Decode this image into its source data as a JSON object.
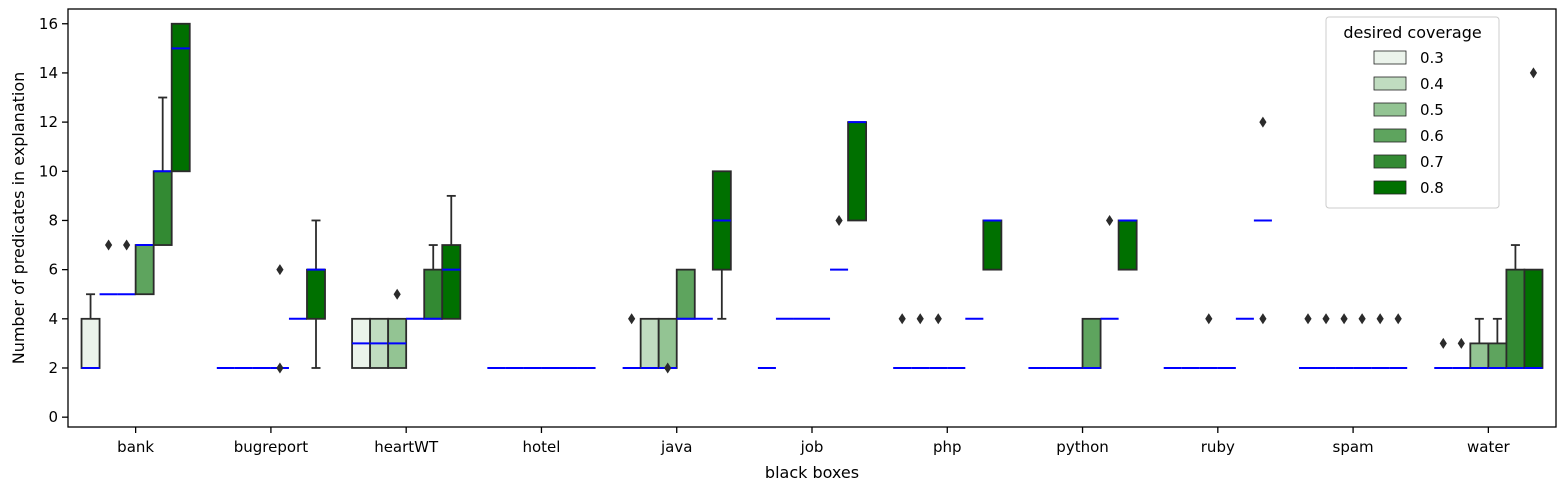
{
  "chart_data": {
    "type": "box",
    "xlabel": "black boxes",
    "ylabel": "Number of predicates in explanation",
    "ylim": [
      -0.4,
      16.6
    ],
    "yticks": [
      0,
      2,
      4,
      6,
      8,
      10,
      12,
      14,
      16
    ],
    "categories": [
      "bank",
      "bugreport",
      "heartWT",
      "hotel",
      "java",
      "job",
      "php",
      "python",
      "ruby",
      "spam",
      "water"
    ],
    "legend": {
      "title": "desired coverage",
      "position": "top-right",
      "entries": [
        {
          "label": "0.3",
          "color": "#ebf3eb"
        },
        {
          "label": "0.4",
          "color": "#c0dcc0"
        },
        {
          "label": "0.5",
          "color": "#93c493"
        },
        {
          "label": "0.6",
          "color": "#5ea45e"
        },
        {
          "label": "0.7",
          "color": "#338a33"
        },
        {
          "label": "0.8",
          "color": "#007000"
        }
      ]
    },
    "median_color": "#0000ff",
    "series": [
      {
        "name": "0.3",
        "boxes": [
          {
            "q1": 2,
            "median": 2,
            "q3": 4,
            "wlo": 2,
            "whi": 5,
            "fliers": []
          },
          {
            "q1": 2,
            "median": 2,
            "q3": 2,
            "wlo": 2,
            "whi": 2,
            "fliers": []
          },
          {
            "q1": 2,
            "median": 3,
            "q3": 4,
            "wlo": 2,
            "whi": 4,
            "fliers": []
          },
          {
            "q1": 2,
            "median": 2,
            "q3": 2,
            "wlo": 2,
            "whi": 2,
            "fliers": []
          },
          {
            "q1": 2,
            "median": 2,
            "q3": 2,
            "wlo": 2,
            "whi": 2,
            "fliers": [
              4
            ]
          },
          {
            "q1": 2,
            "median": 2,
            "q3": 2,
            "wlo": 2,
            "whi": 2,
            "fliers": []
          },
          {
            "q1": 2,
            "median": 2,
            "q3": 2,
            "wlo": 2,
            "whi": 2,
            "fliers": [
              4
            ]
          },
          {
            "q1": 2,
            "median": 2,
            "q3": 2,
            "wlo": 2,
            "whi": 2,
            "fliers": []
          },
          {
            "q1": 2,
            "median": 2,
            "q3": 2,
            "wlo": 2,
            "whi": 2,
            "fliers": []
          },
          {
            "q1": 2,
            "median": 2,
            "q3": 2,
            "wlo": 2,
            "whi": 2,
            "fliers": [
              4
            ]
          },
          {
            "q1": 2,
            "median": 2,
            "q3": 2,
            "wlo": 2,
            "whi": 2,
            "fliers": [
              3
            ]
          }
        ]
      },
      {
        "name": "0.4",
        "boxes": [
          {
            "q1": 5,
            "median": 5,
            "q3": 5,
            "wlo": 5,
            "whi": 5,
            "fliers": [
              7
            ]
          },
          {
            "q1": 2,
            "median": 2,
            "q3": 2,
            "wlo": 2,
            "whi": 2,
            "fliers": []
          },
          {
            "q1": 2,
            "median": 3,
            "q3": 4,
            "wlo": 2,
            "whi": 4,
            "fliers": []
          },
          {
            "q1": 2,
            "median": 2,
            "q3": 2,
            "wlo": 2,
            "whi": 2,
            "fliers": []
          },
          {
            "q1": 2,
            "median": 2,
            "q3": 4,
            "wlo": 2,
            "whi": 4,
            "fliers": []
          },
          {
            "q1": 4,
            "median": 4,
            "q3": 4,
            "wlo": 4,
            "whi": 4,
            "fliers": []
          },
          {
            "q1": 2,
            "median": 2,
            "q3": 2,
            "wlo": 2,
            "whi": 2,
            "fliers": [
              4
            ]
          },
          {
            "q1": 2,
            "median": 2,
            "q3": 2,
            "wlo": 2,
            "whi": 2,
            "fliers": []
          },
          {
            "q1": 2,
            "median": 2,
            "q3": 2,
            "wlo": 2,
            "whi": 2,
            "fliers": []
          },
          {
            "q1": 2,
            "median": 2,
            "q3": 2,
            "wlo": 2,
            "whi": 2,
            "fliers": [
              4
            ]
          },
          {
            "q1": 2,
            "median": 2,
            "q3": 2,
            "wlo": 2,
            "whi": 2,
            "fliers": [
              3
            ]
          }
        ]
      },
      {
        "name": "0.5",
        "boxes": [
          {
            "q1": 5,
            "median": 5,
            "q3": 5,
            "wlo": 5,
            "whi": 5,
            "fliers": [
              7
            ]
          },
          {
            "q1": 2,
            "median": 2,
            "q3": 2,
            "wlo": 2,
            "whi": 2,
            "fliers": []
          },
          {
            "q1": 2,
            "median": 3,
            "q3": 4,
            "wlo": 2,
            "whi": 4,
            "fliers": [
              5
            ]
          },
          {
            "q1": 2,
            "median": 2,
            "q3": 2,
            "wlo": 2,
            "whi": 2,
            "fliers": []
          },
          {
            "q1": 2,
            "median": 2,
            "q3": 4,
            "wlo": 2,
            "whi": 4,
            "fliers": [
              2
            ]
          },
          {
            "q1": 4,
            "median": 4,
            "q3": 4,
            "wlo": 4,
            "whi": 4,
            "fliers": []
          },
          {
            "q1": 2,
            "median": 2,
            "q3": 2,
            "wlo": 2,
            "whi": 2,
            "fliers": [
              4
            ]
          },
          {
            "q1": 2,
            "median": 2,
            "q3": 2,
            "wlo": 2,
            "whi": 2,
            "fliers": []
          },
          {
            "q1": 2,
            "median": 2,
            "q3": 2,
            "wlo": 2,
            "whi": 2,
            "fliers": [
              4
            ]
          },
          {
            "q1": 2,
            "median": 2,
            "q3": 2,
            "wlo": 2,
            "whi": 2,
            "fliers": [
              4
            ]
          },
          {
            "q1": 2,
            "median": 2,
            "q3": 3,
            "wlo": 2,
            "whi": 4,
            "fliers": []
          }
        ]
      },
      {
        "name": "0.6",
        "boxes": [
          {
            "q1": 5,
            "median": 7,
            "q3": 7,
            "wlo": 5,
            "whi": 7,
            "fliers": []
          },
          {
            "q1": 2,
            "median": 2,
            "q3": 2,
            "wlo": 2,
            "whi": 2,
            "fliers": [
              2,
              6
            ]
          },
          {
            "q1": 4,
            "median": 4,
            "q3": 4,
            "wlo": 4,
            "whi": 4,
            "fliers": []
          },
          {
            "q1": 2,
            "median": 2,
            "q3": 2,
            "wlo": 2,
            "whi": 2,
            "fliers": []
          },
          {
            "q1": 4,
            "median": 4,
            "q3": 6,
            "wlo": 4,
            "whi": 6,
            "fliers": []
          },
          {
            "q1": 4,
            "median": 4,
            "q3": 4,
            "wlo": 4,
            "whi": 4,
            "fliers": []
          },
          {
            "q1": 2,
            "median": 2,
            "q3": 2,
            "wlo": 2,
            "whi": 2,
            "fliers": []
          },
          {
            "q1": 2,
            "median": 2,
            "q3": 4,
            "wlo": 2,
            "whi": 4,
            "fliers": []
          },
          {
            "q1": 2,
            "median": 2,
            "q3": 2,
            "wlo": 2,
            "whi": 2,
            "fliers": []
          },
          {
            "q1": 2,
            "median": 2,
            "q3": 2,
            "wlo": 2,
            "whi": 2,
            "fliers": [
              4
            ]
          },
          {
            "q1": 2,
            "median": 2,
            "q3": 3,
            "wlo": 2,
            "whi": 4,
            "fliers": []
          }
        ]
      },
      {
        "name": "0.7",
        "boxes": [
          {
            "q1": 7,
            "median": 10,
            "q3": 10,
            "wlo": 7,
            "whi": 13,
            "fliers": []
          },
          {
            "q1": 4,
            "median": 4,
            "q3": 4,
            "wlo": 4,
            "whi": 4,
            "fliers": []
          },
          {
            "q1": 4,
            "median": 4,
            "q3": 6,
            "wlo": 4,
            "whi": 7,
            "fliers": []
          },
          {
            "q1": 2,
            "median": 2,
            "q3": 2,
            "wlo": 2,
            "whi": 2,
            "fliers": []
          },
          {
            "q1": 4,
            "median": 4,
            "q3": 4,
            "wlo": 4,
            "whi": 4,
            "fliers": []
          },
          {
            "q1": 6,
            "median": 6,
            "q3": 6,
            "wlo": 6,
            "whi": 6,
            "fliers": [
              8
            ]
          },
          {
            "q1": 4,
            "median": 4,
            "q3": 4,
            "wlo": 4,
            "whi": 4,
            "fliers": []
          },
          {
            "q1": 4,
            "median": 4,
            "q3": 4,
            "wlo": 4,
            "whi": 4,
            "fliers": [
              8
            ]
          },
          {
            "q1": 4,
            "median": 4,
            "q3": 4,
            "wlo": 4,
            "whi": 4,
            "fliers": []
          },
          {
            "q1": 2,
            "median": 2,
            "q3": 2,
            "wlo": 2,
            "whi": 2,
            "fliers": [
              4
            ]
          },
          {
            "q1": 2,
            "median": 2,
            "q3": 6,
            "wlo": 2,
            "whi": 7,
            "fliers": []
          }
        ]
      },
      {
        "name": "0.8",
        "boxes": [
          {
            "q1": 10,
            "median": 15,
            "q3": 16,
            "wlo": 10,
            "whi": 16,
            "fliers": []
          },
          {
            "q1": 4,
            "median": 6,
            "q3": 6,
            "wlo": 2,
            "whi": 8,
            "fliers": []
          },
          {
            "q1": 4,
            "median": 6,
            "q3": 7,
            "wlo": 4,
            "whi": 9,
            "fliers": []
          },
          {
            "q1": 2,
            "median": 2,
            "q3": 2,
            "wlo": 2,
            "whi": 2,
            "fliers": []
          },
          {
            "q1": 6,
            "median": 8,
            "q3": 10,
            "wlo": 4,
            "whi": 10,
            "fliers": []
          },
          {
            "q1": 8,
            "median": 12,
            "q3": 12,
            "wlo": 8,
            "whi": 12,
            "fliers": []
          },
          {
            "q1": 6,
            "median": 8,
            "q3": 8,
            "wlo": 6,
            "whi": 8,
            "fliers": []
          },
          {
            "q1": 6,
            "median": 8,
            "q3": 8,
            "wlo": 6,
            "whi": 8,
            "fliers": []
          },
          {
            "q1": 8,
            "median": 8,
            "q3": 8,
            "wlo": 8,
            "whi": 8,
            "fliers": [
              4,
              12
            ]
          },
          {
            "q1": 2,
            "median": 2,
            "q3": 2,
            "wlo": 2,
            "whi": 2,
            "fliers": [
              4
            ]
          },
          {
            "q1": 2,
            "median": 2,
            "q3": 6,
            "wlo": 2,
            "whi": 6,
            "fliers": [
              14
            ]
          }
        ]
      }
    ]
  }
}
